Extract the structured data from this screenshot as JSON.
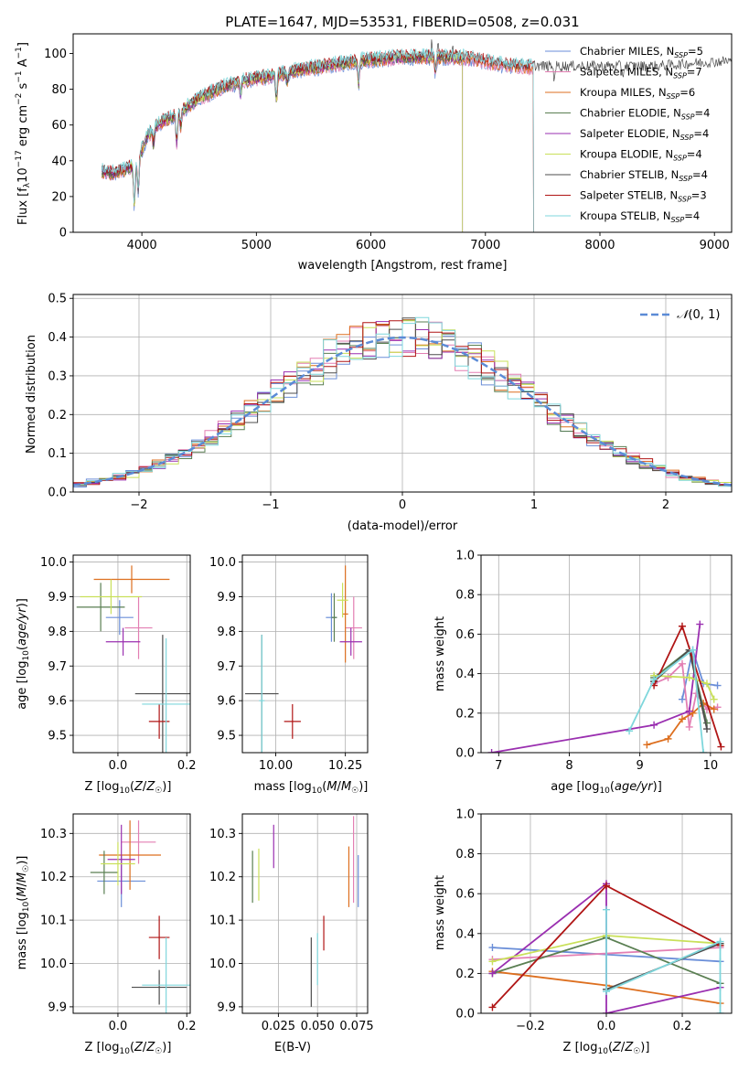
{
  "colors": {
    "series": [
      "#6a8ed8",
      "#e37fb3",
      "#dd6f1f",
      "#5a7f52",
      "#9a2fb0",
      "#c9e05a",
      "#4d4d4d",
      "#b01515",
      "#7fd7dc"
    ],
    "normal": "#5b8bd6",
    "grid": "#b0b0b0"
  },
  "chart_data": [
    {
      "id": "spectrum",
      "type": "line",
      "title": "PLATE=1647, MJD=53531, FIBERID=0508, z=0.031",
      "xlabel": "wavelength [Angstrom, rest frame]",
      "ylabel": "Flux [f_λ 10^-17 erg cm^-2 s^-1 A^-1]",
      "xlim": [
        3400,
        9150
      ],
      "ylim": [
        0,
        111
      ],
      "xticks": [
        4000,
        5000,
        6000,
        7000,
        8000,
        9000
      ],
      "yticks": [
        0,
        20,
        40,
        60,
        80,
        100
      ],
      "grid": false,
      "legend_position": "right",
      "series_names": [
        "Chabrier MILES, N_SSP=5",
        "Salpeter MILES, N_SSP=7",
        "Kroupa MILES, N_SSP=6",
        "Chabrier ELODIE, N_SSP=4",
        "Salpeter ELODIE, N_SSP=4",
        "Kroupa ELODIE, N_SSP=4",
        "Chabrier STELIB, N_SSP=4",
        "Salpeter STELIB, N_SSP=3",
        "Kroupa STELIB, N_SSP=4"
      ],
      "series_ranges": [
        [
          3650,
          7420
        ],
        [
          3650,
          7420
        ],
        [
          3650,
          7420
        ],
        [
          3650,
          6800
        ],
        [
          3650,
          6800
        ],
        [
          3900,
          6800
        ],
        [
          3650,
          9150
        ],
        [
          3650,
          7420
        ],
        [
          3650,
          7420
        ]
      ],
      "continuum": {
        "x": [
          3650,
          3750,
          3850,
          3950,
          4050,
          4150,
          4250,
          4350,
          4500,
          4700,
          4900,
          5100,
          5300,
          5500,
          5700,
          5900,
          6100,
          6300,
          6500,
          6700,
          6900,
          7100,
          7300,
          7500,
          7700,
          7900,
          8100,
          8300,
          8500,
          8700,
          8900,
          9150
        ],
        "y": [
          34,
          33,
          35,
          38,
          54,
          61,
          64,
          68,
          75,
          81,
          85,
          87,
          90,
          92,
          94,
          96,
          97,
          98,
          98,
          98,
          97,
          94,
          93,
          92,
          92,
          92,
          92,
          92,
          92,
          93,
          94,
          95
        ]
      },
      "features": [
        {
          "x": 3934,
          "depth": 22
        },
        {
          "x": 3968,
          "depth": 18
        },
        {
          "x": 4102,
          "depth": 8
        },
        {
          "x": 4304,
          "depth": 16
        },
        {
          "x": 4340,
          "depth": 8
        },
        {
          "x": 4861,
          "depth": 7
        },
        {
          "x": 5175,
          "depth": 14
        },
        {
          "x": 5270,
          "depth": 6
        },
        {
          "x": 5893,
          "depth": 12
        },
        {
          "x": 6563,
          "depth": 8
        },
        {
          "x": 7600,
          "depth": 6
        },
        {
          "x": 8200,
          "depth": 5
        }
      ],
      "spikes": [
        {
          "x": 6530,
          "height": 10
        },
        {
          "x": 6587,
          "height": 12
        },
        {
          "x": 6716,
          "height": 6
        }
      ]
    },
    {
      "id": "residuals",
      "type": "histogram",
      "xlabel": "(data-model)/error",
      "ylabel": "Normed distribution",
      "xlim": [
        -2.5,
        2.5
      ],
      "ylim": [
        0,
        0.51
      ],
      "xticks": [
        -2,
        -1,
        0,
        1,
        2
      ],
      "yticks": [
        0.0,
        0.1,
        0.2,
        0.3,
        0.4,
        0.5
      ],
      "grid": true,
      "legend": "N(0,1)",
      "legend_position": "top-right",
      "bin_width": 0.1
    },
    {
      "id": "age-vs-z",
      "type": "scatter",
      "xlabel": "Z [log10(Z/Z☉)]",
      "ylabel": "age [log10(age/yr)]",
      "xlim": [
        -0.13,
        0.21
      ],
      "ylim": [
        9.45,
        10.02
      ],
      "xticks": [
        0.0,
        0.2
      ],
      "yticks": [
        9.5,
        9.6,
        9.7,
        9.8,
        9.9,
        10.0
      ],
      "grid": true,
      "points": [
        {
          "x": 0.005,
          "y": 9.84,
          "ex": 0.04,
          "ey": 0.05
        },
        {
          "x": 0.06,
          "y": 9.81,
          "ex": 0.04,
          "ey": 0.09
        },
        {
          "x": 0.04,
          "y": 9.95,
          "ex": 0.11,
          "ey": 0.04
        },
        {
          "x": -0.05,
          "y": 9.87,
          "ex": 0.07,
          "ey": 0.07
        },
        {
          "x": 0.015,
          "y": 9.77,
          "ex": 0.05,
          "ey": 0.04
        },
        {
          "x": -0.02,
          "y": 9.9,
          "ex": 0.09,
          "ey": 0.05
        },
        {
          "x": 0.13,
          "y": 9.62,
          "ex": 0.08,
          "ey": 0.17
        },
        {
          "x": 0.12,
          "y": 9.54,
          "ex": 0.03,
          "ey": 0.05
        },
        {
          "x": 0.14,
          "y": 9.59,
          "ex": 0.07,
          "ey": 0.19
        }
      ]
    },
    {
      "id": "age-vs-mass",
      "type": "scatter",
      "xlabel": "mass [log10(M/M☉)]",
      "ylabel": "",
      "xlim": [
        9.88,
        10.33
      ],
      "ylim": [
        9.45,
        10.02
      ],
      "xticks": [
        10.0,
        10.25
      ],
      "yticks": [
        9.5,
        9.6,
        9.7,
        9.8,
        9.9,
        10.0
      ],
      "grid": true,
      "points": [
        {
          "x": 10.2,
          "y": 9.84,
          "ex": 0.02,
          "ey": 0.07
        },
        {
          "x": 10.28,
          "y": 9.81,
          "ex": 0.03,
          "ey": 0.09
        },
        {
          "x": 10.25,
          "y": 9.85,
          "ex": 0.01,
          "ey": 0.14
        },
        {
          "x": 10.21,
          "y": 9.84,
          "ex": 0.01,
          "ey": 0.07
        },
        {
          "x": 10.27,
          "y": 9.77,
          "ex": 0.04,
          "ey": 0.04
        },
        {
          "x": 10.24,
          "y": 9.89,
          "ex": 0.02,
          "ey": 0.05
        },
        {
          "x": 9.95,
          "y": 9.62,
          "ex": 0.06,
          "ey": 0.17
        },
        {
          "x": 10.06,
          "y": 9.54,
          "ex": 0.03,
          "ey": 0.05
        },
        {
          "x": 9.95,
          "y": 9.6,
          "ex": 0.01,
          "ey": 0.19
        }
      ]
    },
    {
      "id": "massweight-vs-age",
      "type": "line",
      "xlabel": "age [log10(age/yr)]",
      "ylabel": "mass weight",
      "xlim": [
        6.75,
        10.3
      ],
      "ylim": [
        0.0,
        1.0
      ],
      "xticks": [
        7,
        8,
        9,
        10
      ],
      "yticks": [
        0.0,
        0.2,
        0.4,
        0.6,
        0.8,
        1.0
      ],
      "grid": true,
      "series": [
        {
          "x": [
            9.6,
            9.75,
            9.9,
            10.1
          ],
          "y": [
            0.27,
            0.52,
            0.35,
            0.34
          ]
        },
        {
          "x": [
            9.2,
            9.4,
            9.6,
            9.7,
            9.8,
            9.95,
            10.1
          ],
          "y": [
            0.35,
            0.38,
            0.45,
            0.13,
            0.3,
            0.22,
            0.23
          ]
        },
        {
          "x": [
            9.1,
            9.4,
            9.6,
            9.75,
            9.9,
            10.05
          ],
          "y": [
            0.04,
            0.07,
            0.17,
            0.2,
            0.25,
            0.22
          ]
        },
        {
          "x": [
            9.2,
            9.7,
            9.95
          ],
          "y": [
            0.38,
            0.52,
            0.15
          ]
        },
        {
          "x": [
            6.9,
            9.2,
            9.7,
            9.85
          ],
          "y": [
            0.0,
            0.14,
            0.21,
            0.65
          ]
        },
        {
          "x": [
            9.2,
            9.7,
            9.95,
            10.05
          ],
          "y": [
            0.39,
            0.38,
            0.35,
            0.27
          ]
        },
        {
          "x": [
            9.2,
            9.7,
            9.95
          ],
          "y": [
            0.36,
            0.52,
            0.12
          ]
        },
        {
          "x": [
            9.2,
            9.6,
            10.15
          ],
          "y": [
            0.34,
            0.64,
            0.03
          ]
        },
        {
          "x": [
            8.85,
            9.2,
            9.75,
            9.9
          ],
          "y": [
            0.11,
            0.37,
            0.52,
            0.0
          ]
        }
      ]
    },
    {
      "id": "mass-vs-z",
      "type": "scatter",
      "xlabel": "Z [log10(Z/Z☉)]",
      "ylabel": "mass [log10(M/M☉)]",
      "xlim": [
        -0.13,
        0.21
      ],
      "ylim": [
        9.885,
        10.345
      ],
      "xticks": [
        0.0,
        0.2
      ],
      "yticks": [
        9.9,
        10.0,
        10.1,
        10.2,
        10.3
      ],
      "grid": true,
      "points": [
        {
          "x": 0.01,
          "y": 10.19,
          "ex": 0.07,
          "ey": 0.06
        },
        {
          "x": 0.06,
          "y": 10.28,
          "ex": 0.05,
          "ey": 0.05
        },
        {
          "x": 0.035,
          "y": 10.25,
          "ex": 0.09,
          "ey": 0.08
        },
        {
          "x": -0.04,
          "y": 10.21,
          "ex": 0.04,
          "ey": 0.05
        },
        {
          "x": 0.01,
          "y": 10.24,
          "ex": 0.04,
          "ey": 0.08
        },
        {
          "x": 0.0,
          "y": 10.23,
          "ex": 0.05,
          "ey": 0.05
        },
        {
          "x": 0.12,
          "y": 9.945,
          "ex": 0.08,
          "ey": 0.04
        },
        {
          "x": 0.12,
          "y": 10.06,
          "ex": 0.03,
          "ey": 0.05
        },
        {
          "x": 0.14,
          "y": 9.95,
          "ex": 0.07,
          "ey": 0.11
        }
      ]
    },
    {
      "id": "mass-vs-ebv",
      "type": "scatter",
      "xlabel": "E(B-V)",
      "ylabel": "",
      "xlim": [
        0.002,
        0.082
      ],
      "ylim": [
        9.885,
        10.345
      ],
      "xticks": [
        0.025,
        0.05,
        0.075
      ],
      "yticks": [
        9.9,
        10.0,
        10.1,
        10.2,
        10.3
      ],
      "grid": true,
      "points": [
        {
          "x": 0.076,
          "y": 10.19,
          "ey": 0.06
        },
        {
          "x": 0.073,
          "y": 10.24,
          "ey": 0.1
        },
        {
          "x": 0.07,
          "y": 10.2,
          "ey": 0.07
        },
        {
          "x": 0.0085,
          "y": 10.2,
          "ey": 0.06
        },
        {
          "x": 0.022,
          "y": 10.27,
          "ey": 0.05
        },
        {
          "x": 0.0125,
          "y": 10.205,
          "ey": 0.06
        },
        {
          "x": 0.046,
          "y": 9.98,
          "ey": 0.08
        },
        {
          "x": 0.054,
          "y": 10.07,
          "ey": 0.04
        },
        {
          "x": 0.05,
          "y": 10.01,
          "ey": 0.06
        }
      ]
    },
    {
      "id": "massweight-vs-z",
      "type": "line",
      "xlabel": "Z [log10(Z/Z☉)]",
      "ylabel": "mass weight",
      "xlim": [
        -0.33,
        0.33
      ],
      "ylim": [
        0.0,
        1.0
      ],
      "xticks": [
        -0.2,
        0.0,
        0.2
      ],
      "yticks": [
        0.0,
        0.2,
        0.4,
        0.6,
        0.8,
        1.0
      ],
      "grid": true,
      "series": [
        {
          "x": [
            -0.3,
            0.3
          ],
          "y": [
            0.33,
            0.26
          ]
        },
        {
          "x": [
            -0.3,
            0.3
          ],
          "y": [
            0.27,
            0.33
          ]
        },
        {
          "x": [
            -0.3,
            0.0,
            0.3
          ],
          "y": [
            0.21,
            0.14,
            0.05
          ]
        },
        {
          "x": [
            -0.3,
            0.0,
            0.3
          ],
          "y": [
            0.2,
            0.38,
            0.15
          ]
        },
        {
          "x": [
            -0.3,
            0.0,
            0.0,
            0.3
          ],
          "y": [
            0.2,
            0.65,
            0.0,
            0.13
          ]
        },
        {
          "x": [
            -0.3,
            0.0,
            0.3
          ],
          "y": [
            0.26,
            0.39,
            0.35
          ]
        },
        {
          "x": [
            0.0,
            0.3
          ],
          "y": [
            0.12,
            0.35
          ]
        },
        {
          "x": [
            -0.3,
            0.0,
            0.3
          ],
          "y": [
            0.03,
            0.64,
            0.34
          ]
        },
        {
          "x": [
            0.0,
            0.0,
            0.3,
            0.3
          ],
          "y": [
            0.52,
            0.11,
            0.36,
            0.0
          ]
        }
      ]
    }
  ]
}
